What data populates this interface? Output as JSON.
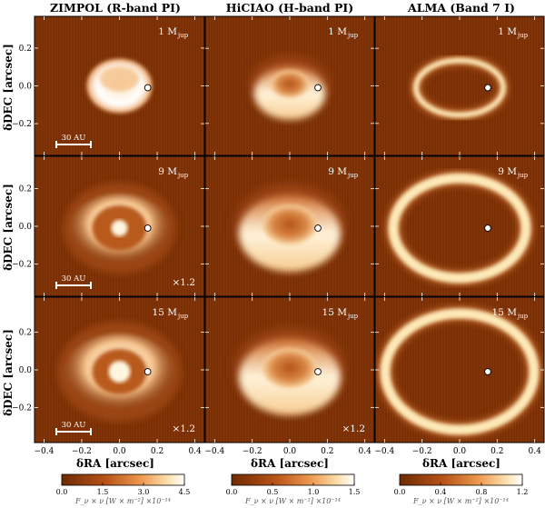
{
  "columns": [
    {
      "title": "ZIMPOL (R-band PI)"
    },
    {
      "title": "HiCIAO (H-band PI)"
    },
    {
      "title": "ALMA (Band 7 I)"
    }
  ],
  "rows": [
    {
      "mass_label": "1 M",
      "mass_sub": "jup"
    },
    {
      "mass_label": "9 M",
      "mass_sub": "jup"
    },
    {
      "mass_label": "15 M",
      "mass_sub": "jup"
    }
  ],
  "axes": {
    "xlabel": "δRA [arcsec]",
    "ylabel": "δDEC [arcsec]",
    "xticks": [
      "−0.4",
      "−0.2",
      "0.0",
      "0.2",
      "0.4"
    ],
    "yticks": [
      "0.4",
      "0.2",
      "0.0",
      "−0.2",
      "−0.4"
    ]
  },
  "scalebar": {
    "label": "30 AU"
  },
  "scale_factor": "×1.2",
  "scale_factor_panels": [
    [
      1,
      0
    ],
    [
      2,
      0
    ],
    [
      2,
      1
    ]
  ],
  "colorbars": [
    {
      "ticks": [
        "0.0",
        "1.5",
        "3.0",
        "4.5"
      ],
      "max": 4.5,
      "label": "F_ν × ν [W × m⁻²] ×10⁻¹⁴"
    },
    {
      "ticks": [
        "0.0",
        "0.5",
        "1.0",
        "1.5"
      ],
      "max": 1.5,
      "label": "F_ν × ν [W × m⁻²] ×10⁻¹⁴"
    },
    {
      "ticks": [
        "0.0",
        "0.4",
        "0.8",
        "1.2"
      ],
      "max": 1.2,
      "label": "F_ν × ν [W × m⁻²] ×10⁻¹⁴"
    }
  ],
  "colors": {
    "background": "#7a2f05",
    "mid": "#c86424",
    "bright": "#fde9b8",
    "peak": "#ffffff",
    "planet": "#ffffff"
  }
}
